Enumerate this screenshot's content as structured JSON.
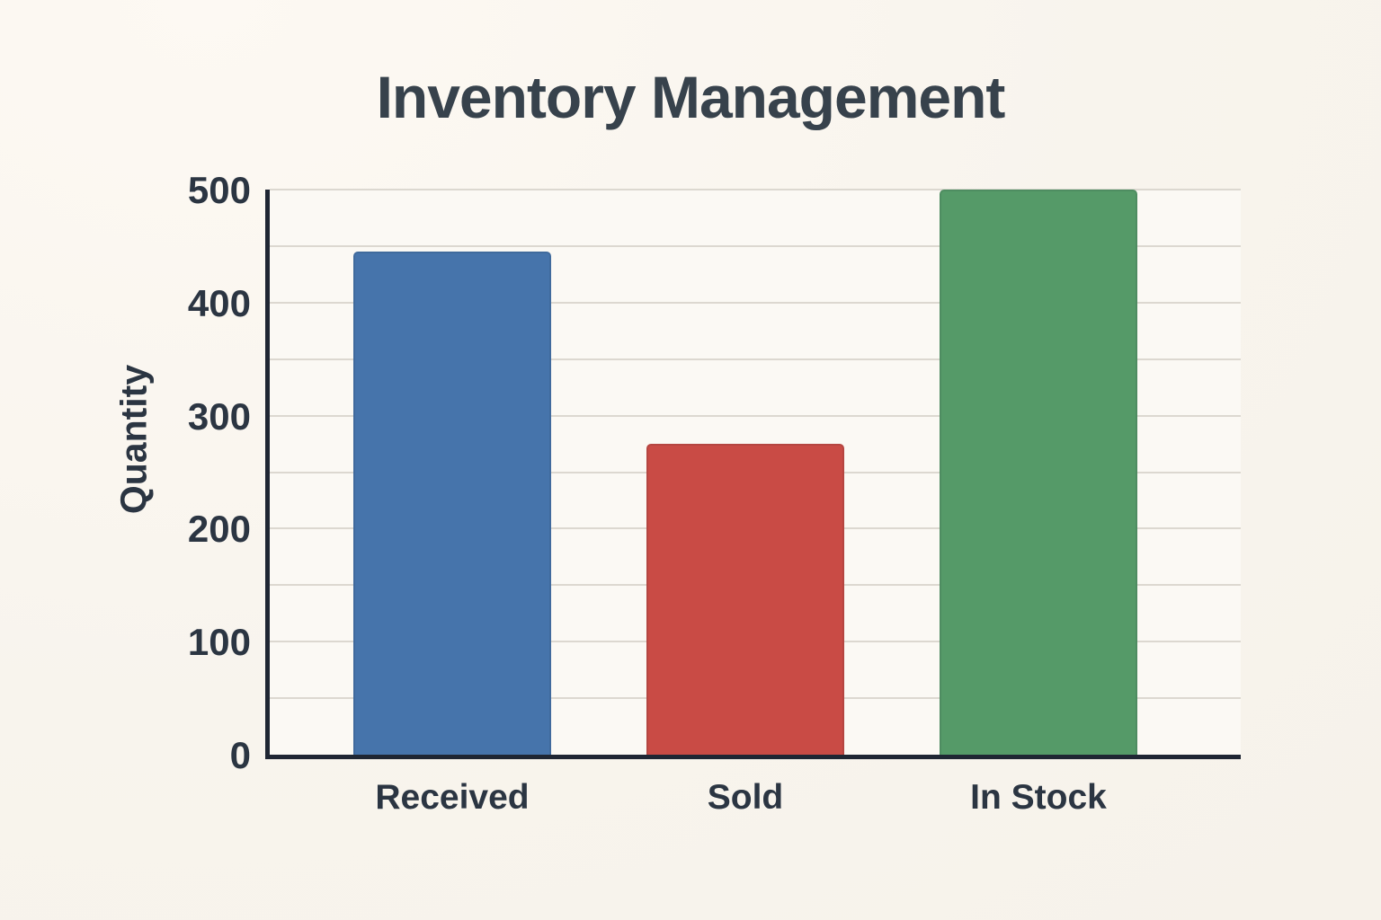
{
  "chart_data": {
    "type": "bar",
    "title": "Inventory Management",
    "xlabel": "",
    "ylabel": "Quantity",
    "categories": [
      "Received",
      "Sold",
      "In Stock"
    ],
    "values": [
      445,
      275,
      500
    ],
    "bar_colors": [
      "#4674ab",
      "#c94b45",
      "#559a68"
    ],
    "ylim": [
      0,
      500
    ],
    "y_ticks": [
      0,
      100,
      200,
      300,
      400,
      500
    ],
    "y_gridline_step": 50,
    "grid": true,
    "legend": "none"
  },
  "style": {
    "background": "#f8f4ed",
    "plot_background": "#fbf9f4",
    "axis_color": "#1f2633",
    "grid_color": "#dcd8d0",
    "title_color": "#37424c",
    "tick_label_color": "#2b3542"
  }
}
